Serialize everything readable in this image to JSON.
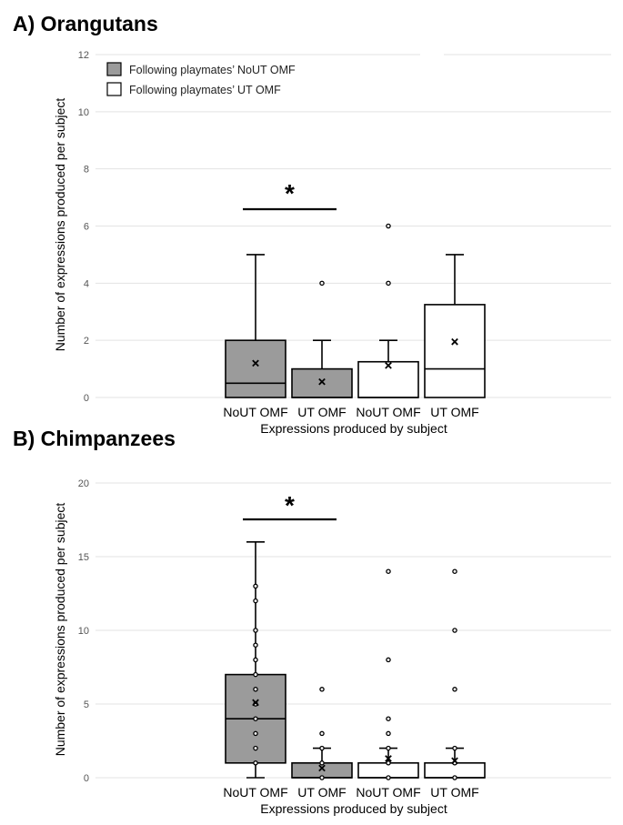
{
  "chart_data": [
    {
      "type": "box",
      "panel_title": "A) Orangutans",
      "ylabel": "Number of expressions produced per subject",
      "xlabel": "Expressions produced by subject",
      "ylim": [
        0,
        12
      ],
      "yticks": [
        0,
        2,
        4,
        6,
        8,
        10,
        12
      ],
      "grid": true,
      "legend_position": "top-left",
      "legend": [
        {
          "label": "Following playmates’ NoUT OMF",
          "fill": "#9b9b9b"
        },
        {
          "label": "Following playmates’ UT OMF",
          "fill": "#ffffff"
        }
      ],
      "significance": {
        "label": "*",
        "from": 0,
        "to": 1
      },
      "categories": [
        "NoUT OMF",
        "UT OMF",
        "NoUT OMF",
        "UT OMF"
      ],
      "boxes": [
        {
          "group": 0,
          "fill": "#9b9b9b",
          "min": 0,
          "q1": 0,
          "median": 0.5,
          "q3": 2,
          "max": 5,
          "mean": 1.2,
          "points": []
        },
        {
          "group": 0,
          "fill": "#9b9b9b",
          "min": 0,
          "q1": 0,
          "median": 0,
          "q3": 1,
          "max": 2,
          "mean": 0.55,
          "points": [
            4
          ]
        },
        {
          "group": 1,
          "fill": "#ffffff",
          "min": 0,
          "q1": 0,
          "median": 0,
          "q3": 1.25,
          "max": 2,
          "mean": 1.12,
          "points": [
            4,
            6
          ]
        },
        {
          "group": 1,
          "fill": "#ffffff",
          "min": 0,
          "q1": 0,
          "median": 1,
          "q3": 3.25,
          "max": 5,
          "mean": 1.95,
          "points": []
        }
      ]
    },
    {
      "type": "box",
      "panel_title": "B) Chimpanzees",
      "ylabel": "Number of expressions produced per subject",
      "xlabel": "Expressions produced by subject",
      "ylim": [
        0,
        20
      ],
      "yticks": [
        0,
        5,
        10,
        15,
        20
      ],
      "grid": true,
      "significance": {
        "label": "*",
        "from": 0,
        "to": 1
      },
      "categories": [
        "NoUT OMF",
        "UT OMF",
        "NoUT OMF",
        "UT OMF"
      ],
      "boxes": [
        {
          "group": 0,
          "fill": "#9b9b9b",
          "min": 0,
          "q1": 1,
          "median": 4,
          "q3": 7,
          "max": 16,
          "mean": 5.1,
          "points": [
            1,
            2,
            3,
            4,
            5,
            6,
            7,
            8,
            9,
            10,
            12,
            13
          ]
        },
        {
          "group": 0,
          "fill": "#9b9b9b",
          "min": 0,
          "q1": 0,
          "median": 0,
          "q3": 1,
          "max": 2,
          "mean": 0.65,
          "points": [
            0,
            1,
            2,
            3,
            6
          ]
        },
        {
          "group": 1,
          "fill": "#ffffff",
          "min": 0,
          "q1": 0,
          "median": 0,
          "q3": 1,
          "max": 2,
          "mean": 1.3,
          "points": [
            0,
            1,
            2,
            3,
            4,
            8,
            14
          ]
        },
        {
          "group": 1,
          "fill": "#ffffff",
          "min": 0,
          "q1": 0,
          "median": 0,
          "q3": 1,
          "max": 2,
          "mean": 1.15,
          "points": [
            0,
            1,
            2,
            6,
            10,
            14
          ]
        }
      ]
    }
  ]
}
